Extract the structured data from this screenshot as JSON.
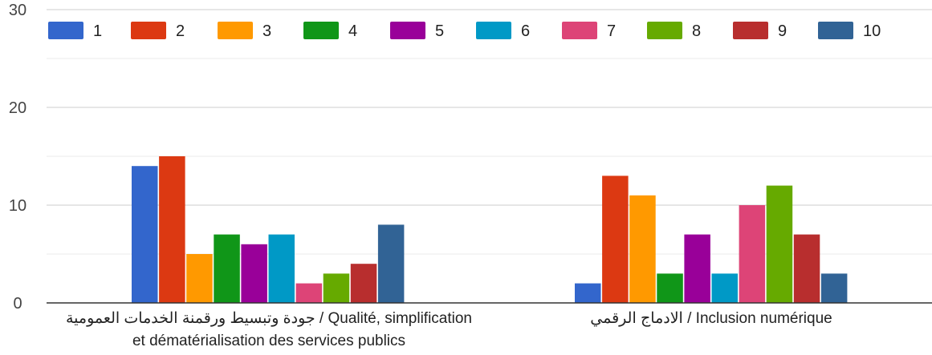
{
  "chart_data": {
    "type": "bar",
    "title": "",
    "xlabel": "",
    "ylabel": "",
    "ylim": [
      0,
      30
    ],
    "yticks": [
      "0",
      "10",
      "20",
      "30"
    ],
    "grid": true,
    "legend_position": "top",
    "categories": [
      [
        "جودة وتبسيط ورقمنة الخدمات العمومية / Qualité, simplification",
        "et dématérialisation des services publics"
      ],
      [
        "الادماج الرقمي / Inclusion numérique"
      ]
    ],
    "series": [
      {
        "name": "1",
        "color": "#3366cc",
        "values": [
          14,
          2
        ]
      },
      {
        "name": "2",
        "color": "#dc3912",
        "values": [
          15,
          13
        ]
      },
      {
        "name": "3",
        "color": "#ff9900",
        "values": [
          5,
          11
        ]
      },
      {
        "name": "4",
        "color": "#109618",
        "values": [
          7,
          3
        ]
      },
      {
        "name": "5",
        "color": "#990099",
        "values": [
          6,
          7
        ]
      },
      {
        "name": "6",
        "color": "#0099c6",
        "values": [
          7,
          3
        ]
      },
      {
        "name": "7",
        "color": "#dd4477",
        "values": [
          2,
          10
        ]
      },
      {
        "name": "8",
        "color": "#66aa00",
        "values": [
          3,
          12
        ]
      },
      {
        "name": "9",
        "color": "#b82e2e",
        "values": [
          4,
          7
        ]
      },
      {
        "name": "10",
        "color": "#316395",
        "values": [
          8,
          3
        ]
      }
    ]
  }
}
